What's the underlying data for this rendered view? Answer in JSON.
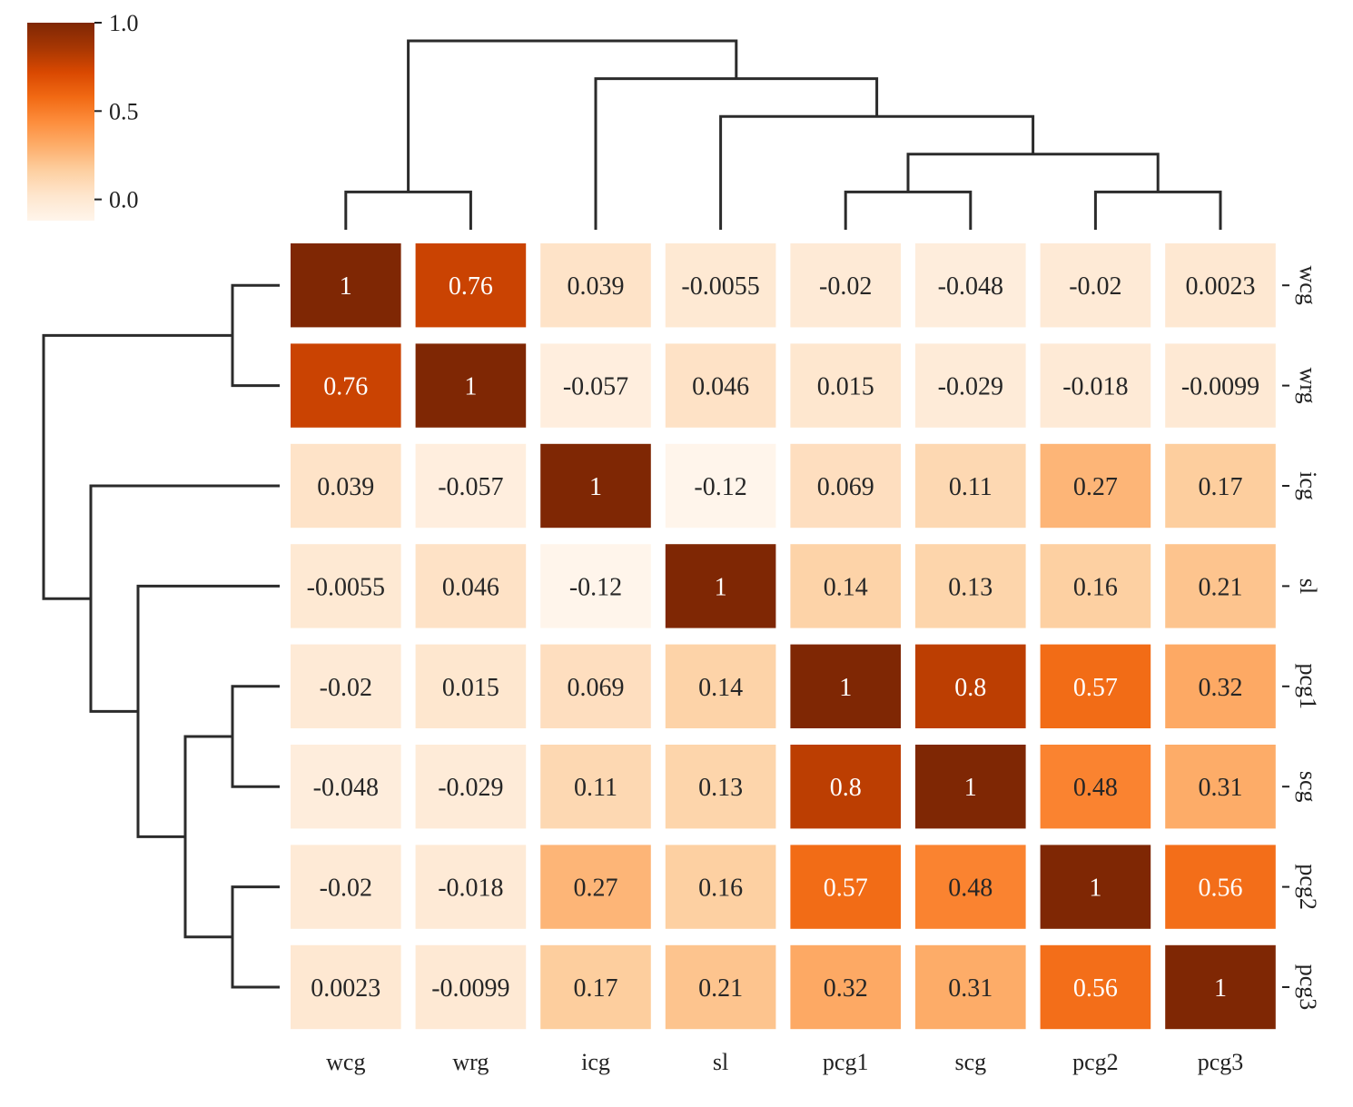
{
  "chart_data": {
    "type": "heatmap",
    "title": "",
    "labels": [
      "wcg",
      "wrg",
      "icg",
      "sl",
      "pcg1",
      "scg",
      "pcg2",
      "pcg3"
    ],
    "matrix": [
      [
        1,
        0.76,
        0.039,
        -0.0055,
        -0.02,
        -0.048,
        -0.02,
        0.0023
      ],
      [
        0.76,
        1,
        -0.057,
        0.046,
        0.015,
        -0.029,
        -0.018,
        -0.0099
      ],
      [
        0.039,
        -0.057,
        1,
        -0.12,
        0.069,
        0.11,
        0.27,
        0.17
      ],
      [
        -0.0055,
        0.046,
        -0.12,
        1,
        0.14,
        0.13,
        0.16,
        0.21
      ],
      [
        -0.02,
        0.015,
        0.069,
        0.14,
        1,
        0.8,
        0.57,
        0.32
      ],
      [
        -0.048,
        -0.029,
        0.11,
        0.13,
        0.8,
        1,
        0.48,
        0.31
      ],
      [
        -0.02,
        -0.018,
        0.27,
        0.16,
        0.57,
        0.48,
        1,
        0.56
      ],
      [
        0.0023,
        -0.0099,
        0.17,
        0.21,
        0.32,
        0.31,
        0.56,
        1
      ]
    ],
    "cell_labels": [
      [
        "1",
        "0.76",
        "0.039",
        "-0.0055",
        "-0.02",
        "-0.048",
        "-0.02",
        "0.0023"
      ],
      [
        "0.76",
        "1",
        "-0.057",
        "0.046",
        "0.015",
        "-0.029",
        "-0.018",
        "-0.0099"
      ],
      [
        "0.039",
        "-0.057",
        "1",
        "-0.12",
        "0.069",
        "0.11",
        "0.27",
        "0.17"
      ],
      [
        "-0.0055",
        "0.046",
        "-0.12",
        "1",
        "0.14",
        "0.13",
        "0.16",
        "0.21"
      ],
      [
        "-0.02",
        "0.015",
        "0.069",
        "0.14",
        "1",
        "0.8",
        "0.57",
        "0.32"
      ],
      [
        "-0.048",
        "-0.029",
        "0.11",
        "0.13",
        "0.8",
        "1",
        "0.48",
        "0.31"
      ],
      [
        "-0.02",
        "-0.018",
        "0.27",
        "0.16",
        "0.57",
        "0.48",
        "1",
        "0.56"
      ],
      [
        "0.0023",
        "-0.0099",
        "0.17",
        "0.21",
        "0.32",
        "0.31",
        "0.56",
        "1"
      ]
    ],
    "colorbar": {
      "vmin": -0.12,
      "vmax": 1.0,
      "ticks": [
        1.0,
        0.5,
        0.0
      ],
      "tick_labels": [
        "1.0",
        "0.5",
        "0.0"
      ],
      "colormap": "Oranges",
      "colors": [
        "#fff5eb",
        "#fee6ce",
        "#fdd0a2",
        "#fdae6b",
        "#fd8d3c",
        "#f16913",
        "#d94801",
        "#a63603",
        "#7f2704"
      ]
    },
    "dendrogram": {
      "merges": [
        [
          "wcg",
          "wrg"
        ],
        [
          "pcg1",
          "scg"
        ],
        [
          "pcg2",
          "pcg3"
        ],
        [
          "(pcg1,scg)",
          "(pcg2,pcg3)"
        ],
        [
          "sl",
          "(pcg1,scg,pcg2,pcg3)"
        ],
        [
          "icg",
          "(sl,pcg1,scg,pcg2,pcg3)"
        ],
        [
          "(wcg,wrg)",
          "(icg,sl,pcg1,scg,pcg2,pcg3)"
        ]
      ]
    },
    "grid": false,
    "legend": "colorbar top-left"
  }
}
